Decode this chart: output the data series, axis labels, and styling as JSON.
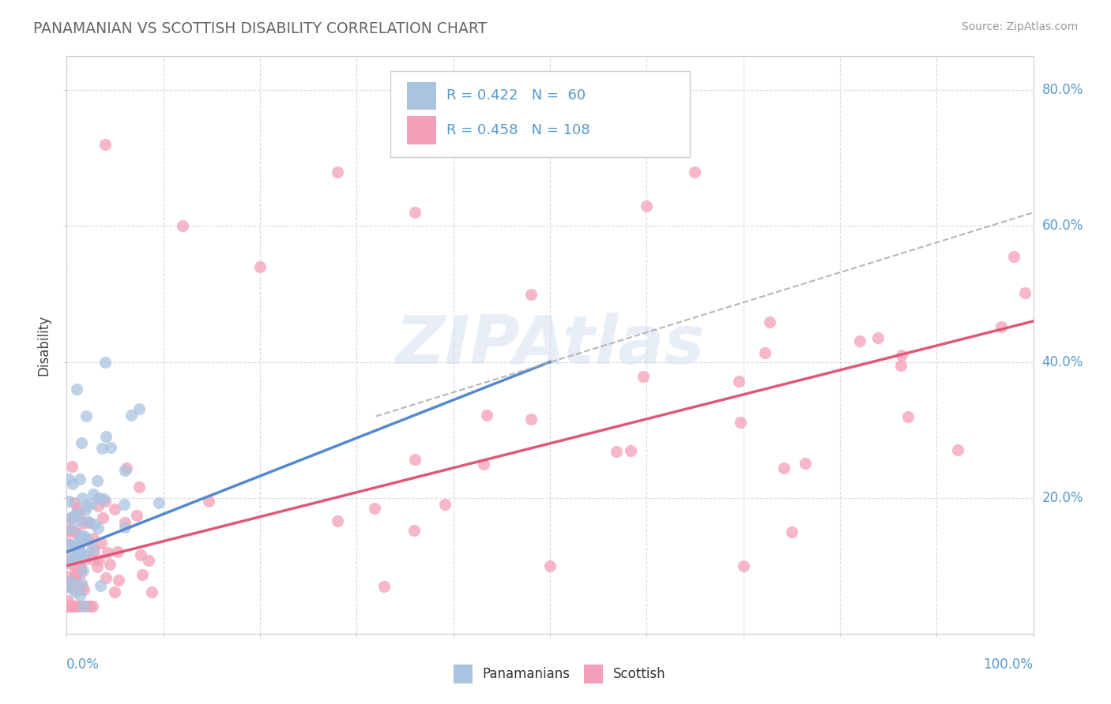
{
  "title": "PANAMANIAN VS SCOTTISH DISABILITY CORRELATION CHART",
  "source": "Source: ZipAtlas.com",
  "ylabel": "Disability",
  "xlim": [
    0.0,
    1.0
  ],
  "ylim": [
    0.0,
    0.85
  ],
  "ytick_values": [
    0.2,
    0.4,
    0.6,
    0.8
  ],
  "ytick_labels": [
    "20.0%",
    "40.0%",
    "60.0%",
    "80.0%"
  ],
  "legend_panamanian_R": "0.422",
  "legend_panamanian_N": "60",
  "legend_scottish_R": "0.458",
  "legend_scottish_N": "108",
  "legend_label_panamanian": "Panamanians",
  "legend_label_scottish": "Scottish",
  "panamanian_color": "#aac4e0",
  "scottish_color": "#f4a0b8",
  "trend_panamanian_color": "#5588cc",
  "trend_scottish_color": "#e05878",
  "trend_dashed_color": "#aaaaaa",
  "background_color": "#ffffff",
  "grid_color": "#d8d8e8",
  "title_color": "#666666",
  "axis_label_color": "#5599cc",
  "watermark_color": "#e8eef5",
  "pan_trend_x0": 0.0,
  "pan_trend_y0": 0.12,
  "pan_trend_x1": 0.5,
  "pan_trend_y1": 0.4,
  "sco_trend_x0": 0.0,
  "sco_trend_y0": 0.1,
  "sco_trend_x1": 1.0,
  "sco_trend_y1": 0.46,
  "dash_trend_x0": 0.32,
  "dash_trend_y0": 0.32,
  "dash_trend_x1": 1.0,
  "dash_trend_y1": 0.62
}
